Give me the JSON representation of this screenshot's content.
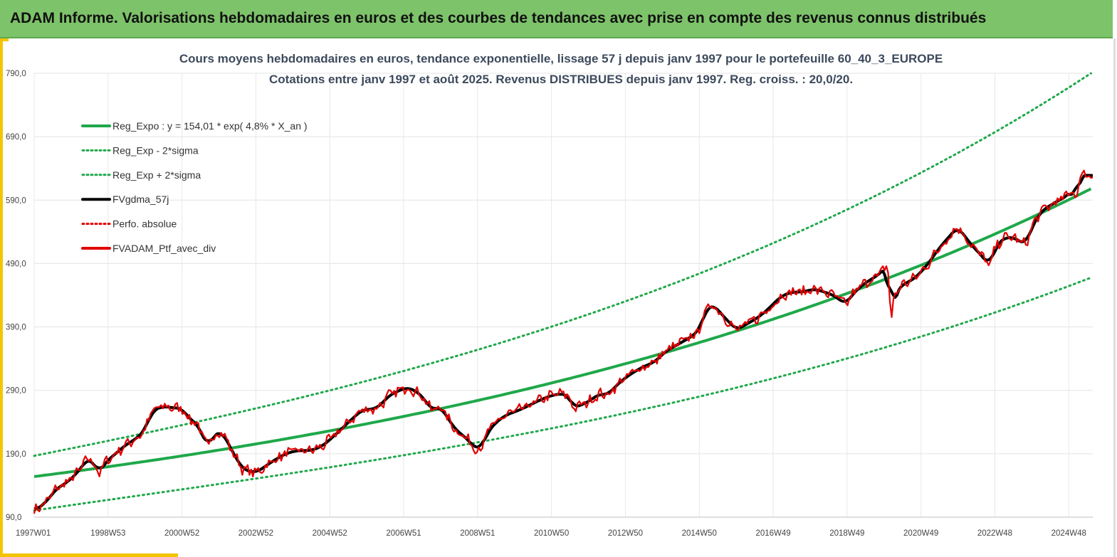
{
  "header": {
    "title": "ADAM Informe. Valorisations hebdomadaires en euros et des courbes de tendances avec prise en compte des revenus connus distribués"
  },
  "colors": {
    "header_bg": "#7dc36a",
    "accent": "#f5c400",
    "trend_green": "#1fa84a",
    "series_red": "#e10000",
    "series_black": "#000000"
  },
  "chart_data": {
    "type": "line",
    "title_line1": "Cours moyens hebdomadaires  en euros, tendance exponentielle, lissage 57 j depuis janv 1997 pour le portefeuille 60_40_3_EUROPE",
    "title_line2": "Cotations  entre janv 1997 et août  2025. Revenus DISTRIBUES depuis janv 1997. Reg. croiss. : 20,0/20.",
    "ylim": [
      90,
      790
    ],
    "yticks": [
      "790,0",
      "690,0",
      "590,0",
      "490,0",
      "390,0",
      "290,0",
      "190,0",
      "90,0"
    ],
    "xlim": [
      1997.0,
      2025.65
    ],
    "xticks": [
      {
        "label": "1997W01",
        "x": 1997.0
      },
      {
        "label": "1998W53",
        "x": 1999.0
      },
      {
        "label": "2000W52",
        "x": 2001.0
      },
      {
        "label": "2002W52",
        "x": 2003.0
      },
      {
        "label": "2004W52",
        "x": 2005.0
      },
      {
        "label": "2006W51",
        "x": 2007.0
      },
      {
        "label": "2008W51",
        "x": 2009.0
      },
      {
        "label": "2010W50",
        "x": 2011.0
      },
      {
        "label": "2012W50",
        "x": 2013.0
      },
      {
        "label": "2014W50",
        "x": 2015.0
      },
      {
        "label": "2016W49",
        "x": 2017.0
      },
      {
        "label": "2018W49",
        "x": 2019.0
      },
      {
        "label": "2020W49",
        "x": 2021.0
      },
      {
        "label": "2022W48",
        "x": 2023.0
      },
      {
        "label": "2024W48",
        "x": 2025.0
      }
    ],
    "grid": true,
    "legend_placement": "top-left",
    "regression": {
      "a": 154.01,
      "rate": 0.048,
      "sigma_offset_start": 45,
      "sigma_ratio_lower": 0.77,
      "sigma_ratio_upper": 1.3
    },
    "series": [
      {
        "name": "Reg_Expo : y = 154,01 * exp( 4,8% *  X_an )",
        "style": "solid-green"
      },
      {
        "name": "Reg_Exp - 2*sigma",
        "style": "dotted-green"
      },
      {
        "name": "Reg_Exp + 2*sigma",
        "style": "dotted-green"
      },
      {
        "name": "FVgdma_57j",
        "style": "solid-black"
      },
      {
        "name": "Perfo. absolue",
        "style": "dotted-red"
      },
      {
        "name": "FVADAM_Ptf_avec_div",
        "style": "solid-red",
        "points": [
          [
            1997.0,
            100
          ],
          [
            1997.3,
            112
          ],
          [
            1997.6,
            135
          ],
          [
            1997.9,
            145
          ],
          [
            1998.2,
            162
          ],
          [
            1998.45,
            183
          ],
          [
            1998.6,
            178
          ],
          [
            1998.75,
            157
          ],
          [
            1998.9,
            175
          ],
          [
            1999.2,
            190
          ],
          [
            1999.5,
            205
          ],
          [
            1999.8,
            215
          ],
          [
            2000.0,
            228
          ],
          [
            2000.2,
            258
          ],
          [
            2000.5,
            265
          ],
          [
            2000.8,
            262
          ],
          [
            2001.0,
            262
          ],
          [
            2001.2,
            245
          ],
          [
            2001.45,
            235
          ],
          [
            2001.65,
            205
          ],
          [
            2001.72,
            197
          ],
          [
            2001.8,
            218
          ],
          [
            2002.1,
            225
          ],
          [
            2002.3,
            200
          ],
          [
            2002.5,
            180
          ],
          [
            2002.65,
            165
          ],
          [
            2002.8,
            163
          ],
          [
            2003.0,
            160
          ],
          [
            2003.2,
            168
          ],
          [
            2003.5,
            180
          ],
          [
            2003.8,
            190
          ],
          [
            2004.1,
            195
          ],
          [
            2004.5,
            195
          ],
          [
            2004.8,
            202
          ],
          [
            2005.0,
            212
          ],
          [
            2005.3,
            228
          ],
          [
            2005.6,
            245
          ],
          [
            2005.9,
            260
          ],
          [
            2006.2,
            260
          ],
          [
            2006.4,
            268
          ],
          [
            2006.6,
            282
          ],
          [
            2006.9,
            290
          ],
          [
            2007.1,
            295
          ],
          [
            2007.35,
            288
          ],
          [
            2007.55,
            278
          ],
          [
            2007.75,
            258
          ],
          [
            2008.0,
            265
          ],
          [
            2008.2,
            245
          ],
          [
            2008.45,
            225
          ],
          [
            2008.7,
            215
          ],
          [
            2008.9,
            200
          ],
          [
            2009.1,
            198
          ],
          [
            2009.25,
            222
          ],
          [
            2009.5,
            240
          ],
          [
            2009.8,
            252
          ],
          [
            2010.1,
            258
          ],
          [
            2010.35,
            265
          ],
          [
            2010.7,
            275
          ],
          [
            2011.0,
            282
          ],
          [
            2011.3,
            285
          ],
          [
            2011.45,
            282
          ],
          [
            2011.6,
            262
          ],
          [
            2011.85,
            268
          ],
          [
            2012.0,
            272
          ],
          [
            2012.3,
            285
          ],
          [
            2012.5,
            282
          ],
          [
            2012.8,
            300
          ],
          [
            2013.0,
            310
          ],
          [
            2013.4,
            325
          ],
          [
            2013.8,
            335
          ],
          [
            2014.1,
            352
          ],
          [
            2014.5,
            365
          ],
          [
            2014.8,
            375
          ],
          [
            2015.0,
            385
          ],
          [
            2015.2,
            420
          ],
          [
            2015.4,
            425
          ],
          [
            2015.6,
            410
          ],
          [
            2015.85,
            395
          ],
          [
            2016.0,
            385
          ],
          [
            2016.3,
            395
          ],
          [
            2016.6,
            405
          ],
          [
            2016.9,
            420
          ],
          [
            2017.2,
            438
          ],
          [
            2017.5,
            445
          ],
          [
            2017.8,
            445
          ],
          [
            2018.1,
            450
          ],
          [
            2018.4,
            445
          ],
          [
            2018.7,
            438
          ],
          [
            2018.95,
            425
          ],
          [
            2019.2,
            445
          ],
          [
            2019.5,
            460
          ],
          [
            2019.8,
            470
          ],
          [
            2020.0,
            480
          ],
          [
            2020.1,
            490
          ],
          [
            2020.15,
            440
          ],
          [
            2020.2,
            400
          ],
          [
            2020.28,
            440
          ],
          [
            2020.45,
            455
          ],
          [
            2020.7,
            462
          ],
          [
            2020.9,
            470
          ],
          [
            2021.2,
            490
          ],
          [
            2021.5,
            515
          ],
          [
            2021.8,
            535
          ],
          [
            2022.0,
            548
          ],
          [
            2022.25,
            528
          ],
          [
            2022.5,
            510
          ],
          [
            2022.7,
            500
          ],
          [
            2022.85,
            485
          ],
          [
            2023.05,
            520
          ],
          [
            2023.3,
            532
          ],
          [
            2023.55,
            530
          ],
          [
            2023.75,
            522
          ],
          [
            2023.85,
            520
          ],
          [
            2024.0,
            548
          ],
          [
            2024.25,
            572
          ],
          [
            2024.5,
            582
          ],
          [
            2024.75,
            590
          ],
          [
            2025.0,
            598
          ],
          [
            2025.1,
            610
          ],
          [
            2025.2,
            585
          ],
          [
            2025.28,
            628
          ],
          [
            2025.45,
            630
          ],
          [
            2025.65,
            628
          ]
        ]
      }
    ]
  }
}
